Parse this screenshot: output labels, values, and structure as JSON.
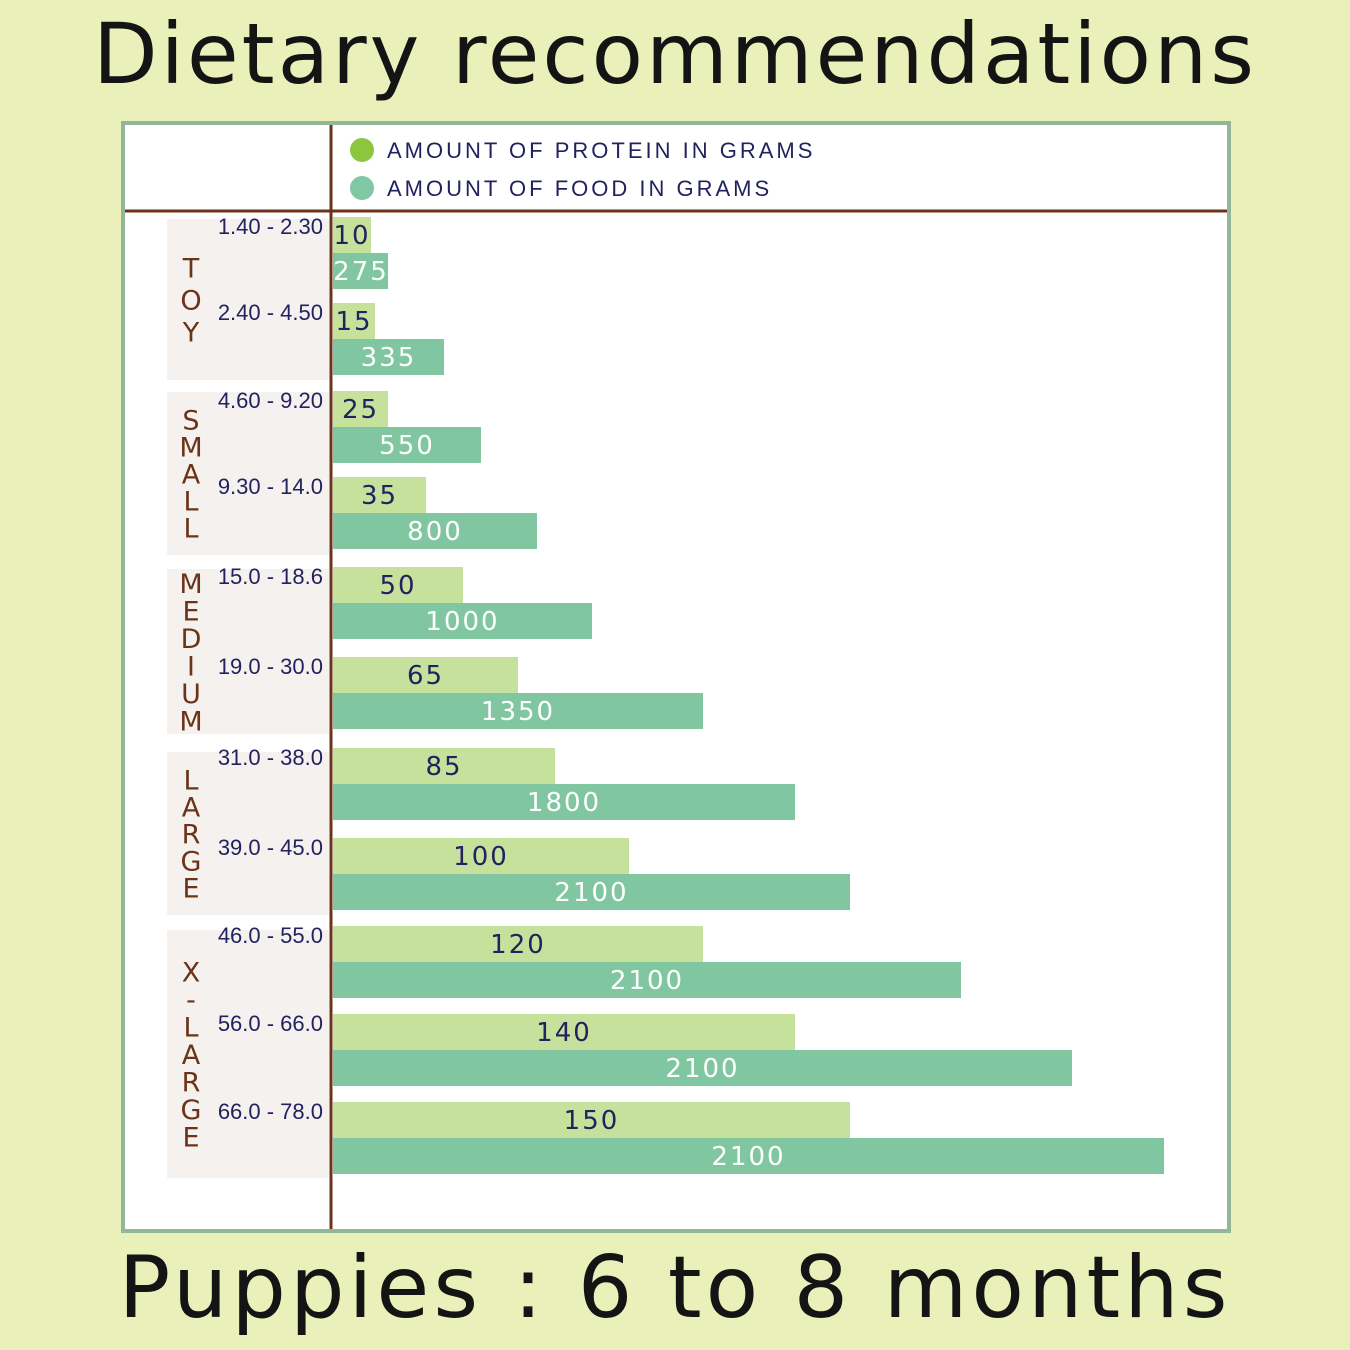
{
  "title": "Dietary recommendations",
  "subtitle": "Puppies : 6 to 8 months",
  "legend": [
    {
      "label": "AMOUNT OF PROTEIN IN GRAMS",
      "color": "#8cc63f"
    },
    {
      "label": "AMOUNT OF FOOD IN GRAMS",
      "color": "#7fc8a3"
    }
  ],
  "colors": {
    "protein_bar": "#c5e19c",
    "food_bar": "#80c7a1",
    "axis": "#6b3318",
    "group_bg": "#f4f1ef",
    "panel_border": "#93b598",
    "background": "#e9f0b9"
  },
  "chart_data": {
    "type": "bar",
    "orientation": "horizontal",
    "categories": [
      "1.40 - 2.30",
      "2.40 - 4.50",
      "4.60 - 9.20",
      "9.30 - 14.0",
      "15.0 - 18.6",
      "19.0 - 30.0",
      "31.0 - 38.0",
      "39.0 - 45.0",
      "46.0 - 55.0",
      "56.0 - 66.0",
      "66.0 - 78.0"
    ],
    "groups": [
      {
        "name": "TOY",
        "categories": [
          "1.40 - 2.30",
          "2.40 - 4.50"
        ]
      },
      {
        "name": "SMALL",
        "categories": [
          "4.60 - 9.20",
          "9.30 - 14.0"
        ]
      },
      {
        "name": "MEDIUM",
        "categories": [
          "15.0 - 18.6",
          "19.0 - 30.0"
        ]
      },
      {
        "name": "LARGE",
        "categories": [
          "31.0 - 38.0",
          "39.0 - 45.0"
        ]
      },
      {
        "name": "X-LARGE",
        "categories": [
          "46.0 - 55.0",
          "56.0 - 66.0",
          "66.0 - 78.0"
        ]
      }
    ],
    "series": [
      {
        "name": "AMOUNT OF PROTEIN IN GRAMS",
        "values": [
          10,
          15,
          25,
          35,
          50,
          65,
          85,
          100,
          120,
          140,
          150
        ]
      },
      {
        "name": "AMOUNT OF FOOD IN GRAMS",
        "values": [
          275,
          335,
          550,
          800,
          1000,
          1350,
          1800,
          2100,
          2100,
          2100,
          2100
        ]
      }
    ],
    "notes": "Bar lengths are not proportional to printed values; they grow by row (decorative scale)."
  }
}
